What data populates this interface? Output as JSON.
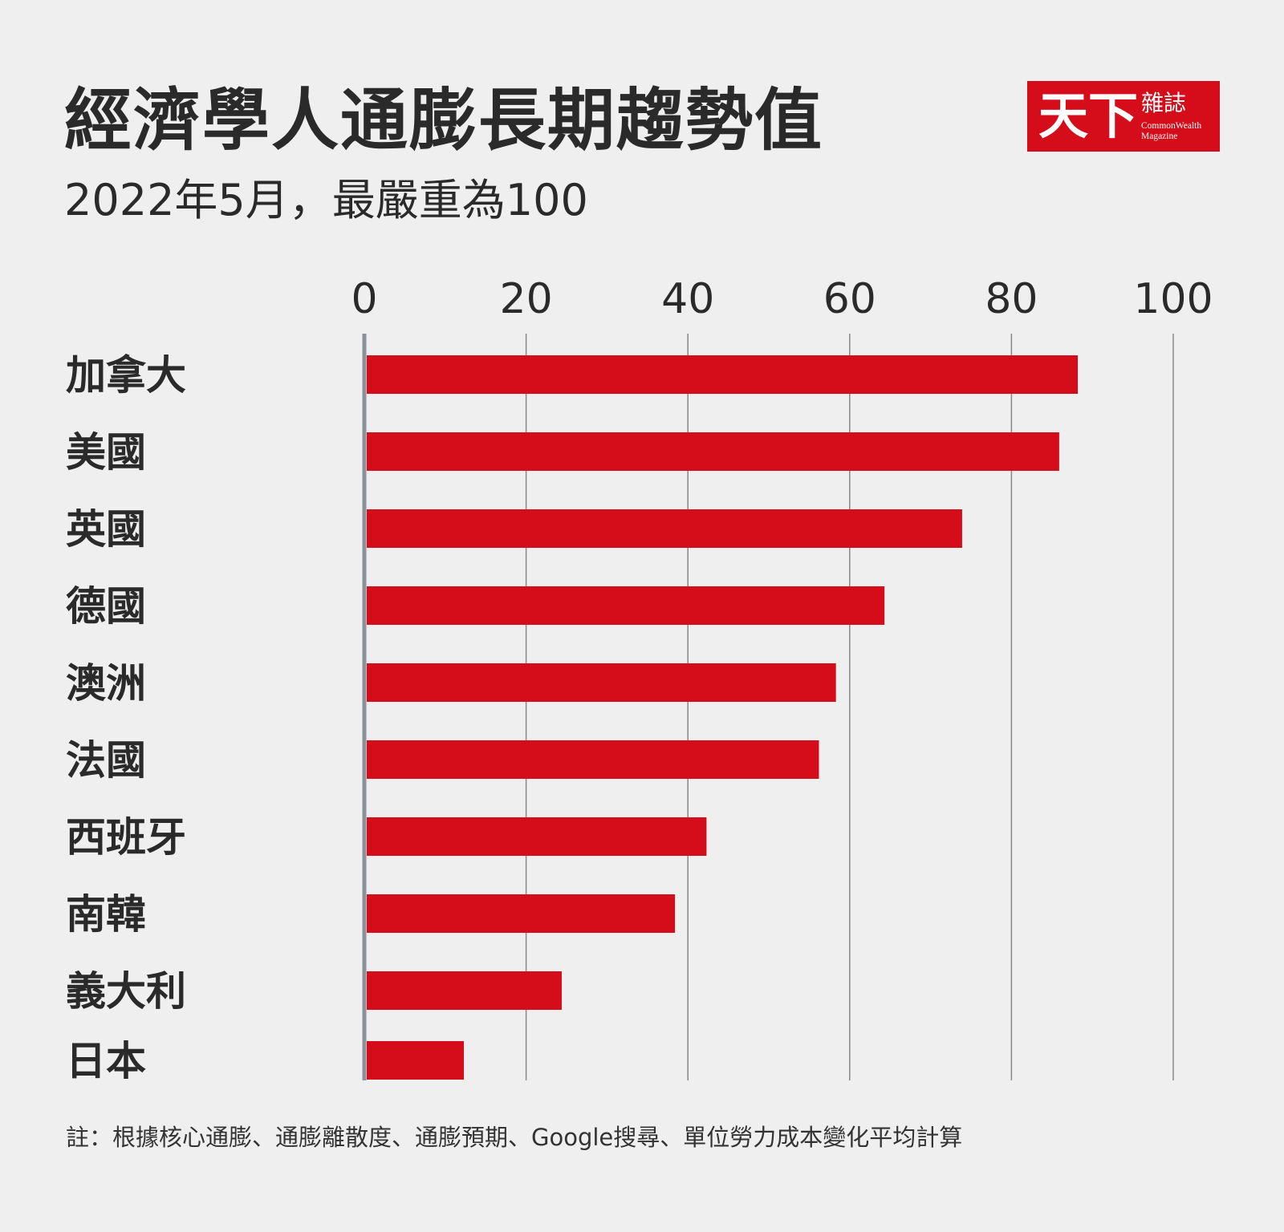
{
  "logo": {
    "main": "天下",
    "zh": "雜誌",
    "en1": "CommonWealth",
    "en2": "Magazine"
  },
  "note": "註：根據核心通膨、通膨離散度、通膨預期、Google搜尋、單位勞力成本變化平均計算",
  "chart_data": {
    "type": "bar",
    "orientation": "horizontal",
    "title": "經濟學人通膨長期趨勢值",
    "subtitle": "2022年5月，最嚴重為100",
    "categories": [
      "加拿大",
      "美國",
      "英國",
      "德國",
      "澳洲",
      "法國",
      "西班牙",
      "南韓",
      "義大利",
      "日本"
    ],
    "values": [
      88.2,
      85.9,
      73.9,
      64.3,
      58.3,
      56.2,
      42.3,
      38.4,
      24.4,
      12.3
    ],
    "xlim": [
      0,
      100
    ],
    "xticks": [
      "0",
      "20",
      "40",
      "60",
      "80",
      "100"
    ],
    "grid": true,
    "bar_color": "#d50c19",
    "xlabel": "",
    "ylabel": ""
  }
}
